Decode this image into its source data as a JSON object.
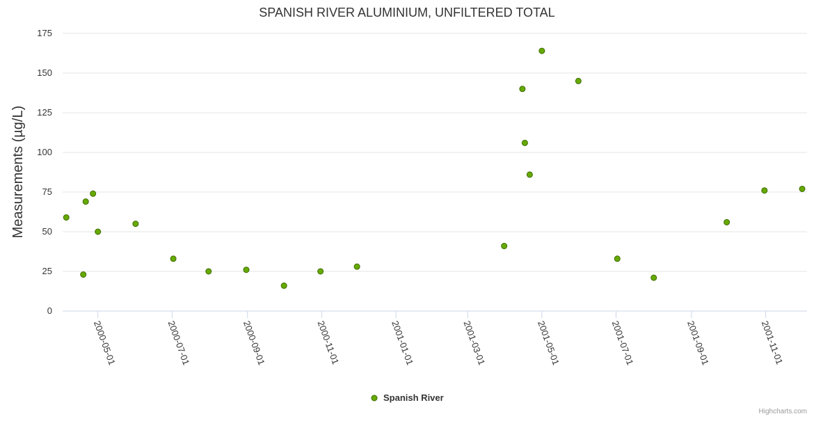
{
  "chart_data": {
    "type": "scatter",
    "title": "SPANISH RIVER ALUMINIUM, UNFILTERED TOTAL",
    "ylabel": "Measurements (µg/L)",
    "xlabel": "",
    "ylim": [
      0,
      175
    ],
    "yticks": [
      0,
      25,
      50,
      75,
      100,
      125,
      150,
      175
    ],
    "xlim": [
      "2000-04-02",
      "2001-12-05"
    ],
    "xticks": [
      "2000-05-01",
      "2000-07-01",
      "2000-09-01",
      "2000-11-01",
      "2001-01-01",
      "2001-03-01",
      "2001-05-01",
      "2001-07-01",
      "2001-09-01",
      "2001-11-01"
    ],
    "grid": true,
    "legend_position": "bottom-center",
    "series": [
      {
        "name": "Spanish River",
        "color": "#66aa00",
        "points": [
          {
            "x": "2000-04-05",
            "y": 59
          },
          {
            "x": "2000-04-19",
            "y": 23
          },
          {
            "x": "2000-04-21",
            "y": 69
          },
          {
            "x": "2000-04-27",
            "y": 74
          },
          {
            "x": "2000-05-01",
            "y": 50
          },
          {
            "x": "2000-06-01",
            "y": 55
          },
          {
            "x": "2000-07-02",
            "y": 33
          },
          {
            "x": "2000-07-31",
            "y": 25
          },
          {
            "x": "2000-08-31",
            "y": 26
          },
          {
            "x": "2000-10-01",
            "y": 16
          },
          {
            "x": "2000-10-31",
            "y": 25
          },
          {
            "x": "2000-11-30",
            "y": 28
          },
          {
            "x": "2001-03-31",
            "y": 41
          },
          {
            "x": "2001-04-15",
            "y": 140
          },
          {
            "x": "2001-04-17",
            "y": 106
          },
          {
            "x": "2001-04-21",
            "y": 86
          },
          {
            "x": "2001-05-01",
            "y": 164
          },
          {
            "x": "2001-05-31",
            "y": 145
          },
          {
            "x": "2001-07-02",
            "y": 33
          },
          {
            "x": "2001-08-01",
            "y": 21
          },
          {
            "x": "2001-09-30",
            "y": 56
          },
          {
            "x": "2001-10-31",
            "y": 76
          },
          {
            "x": "2001-12-01",
            "y": 77
          }
        ]
      }
    ]
  },
  "credits": "Highcharts.com"
}
